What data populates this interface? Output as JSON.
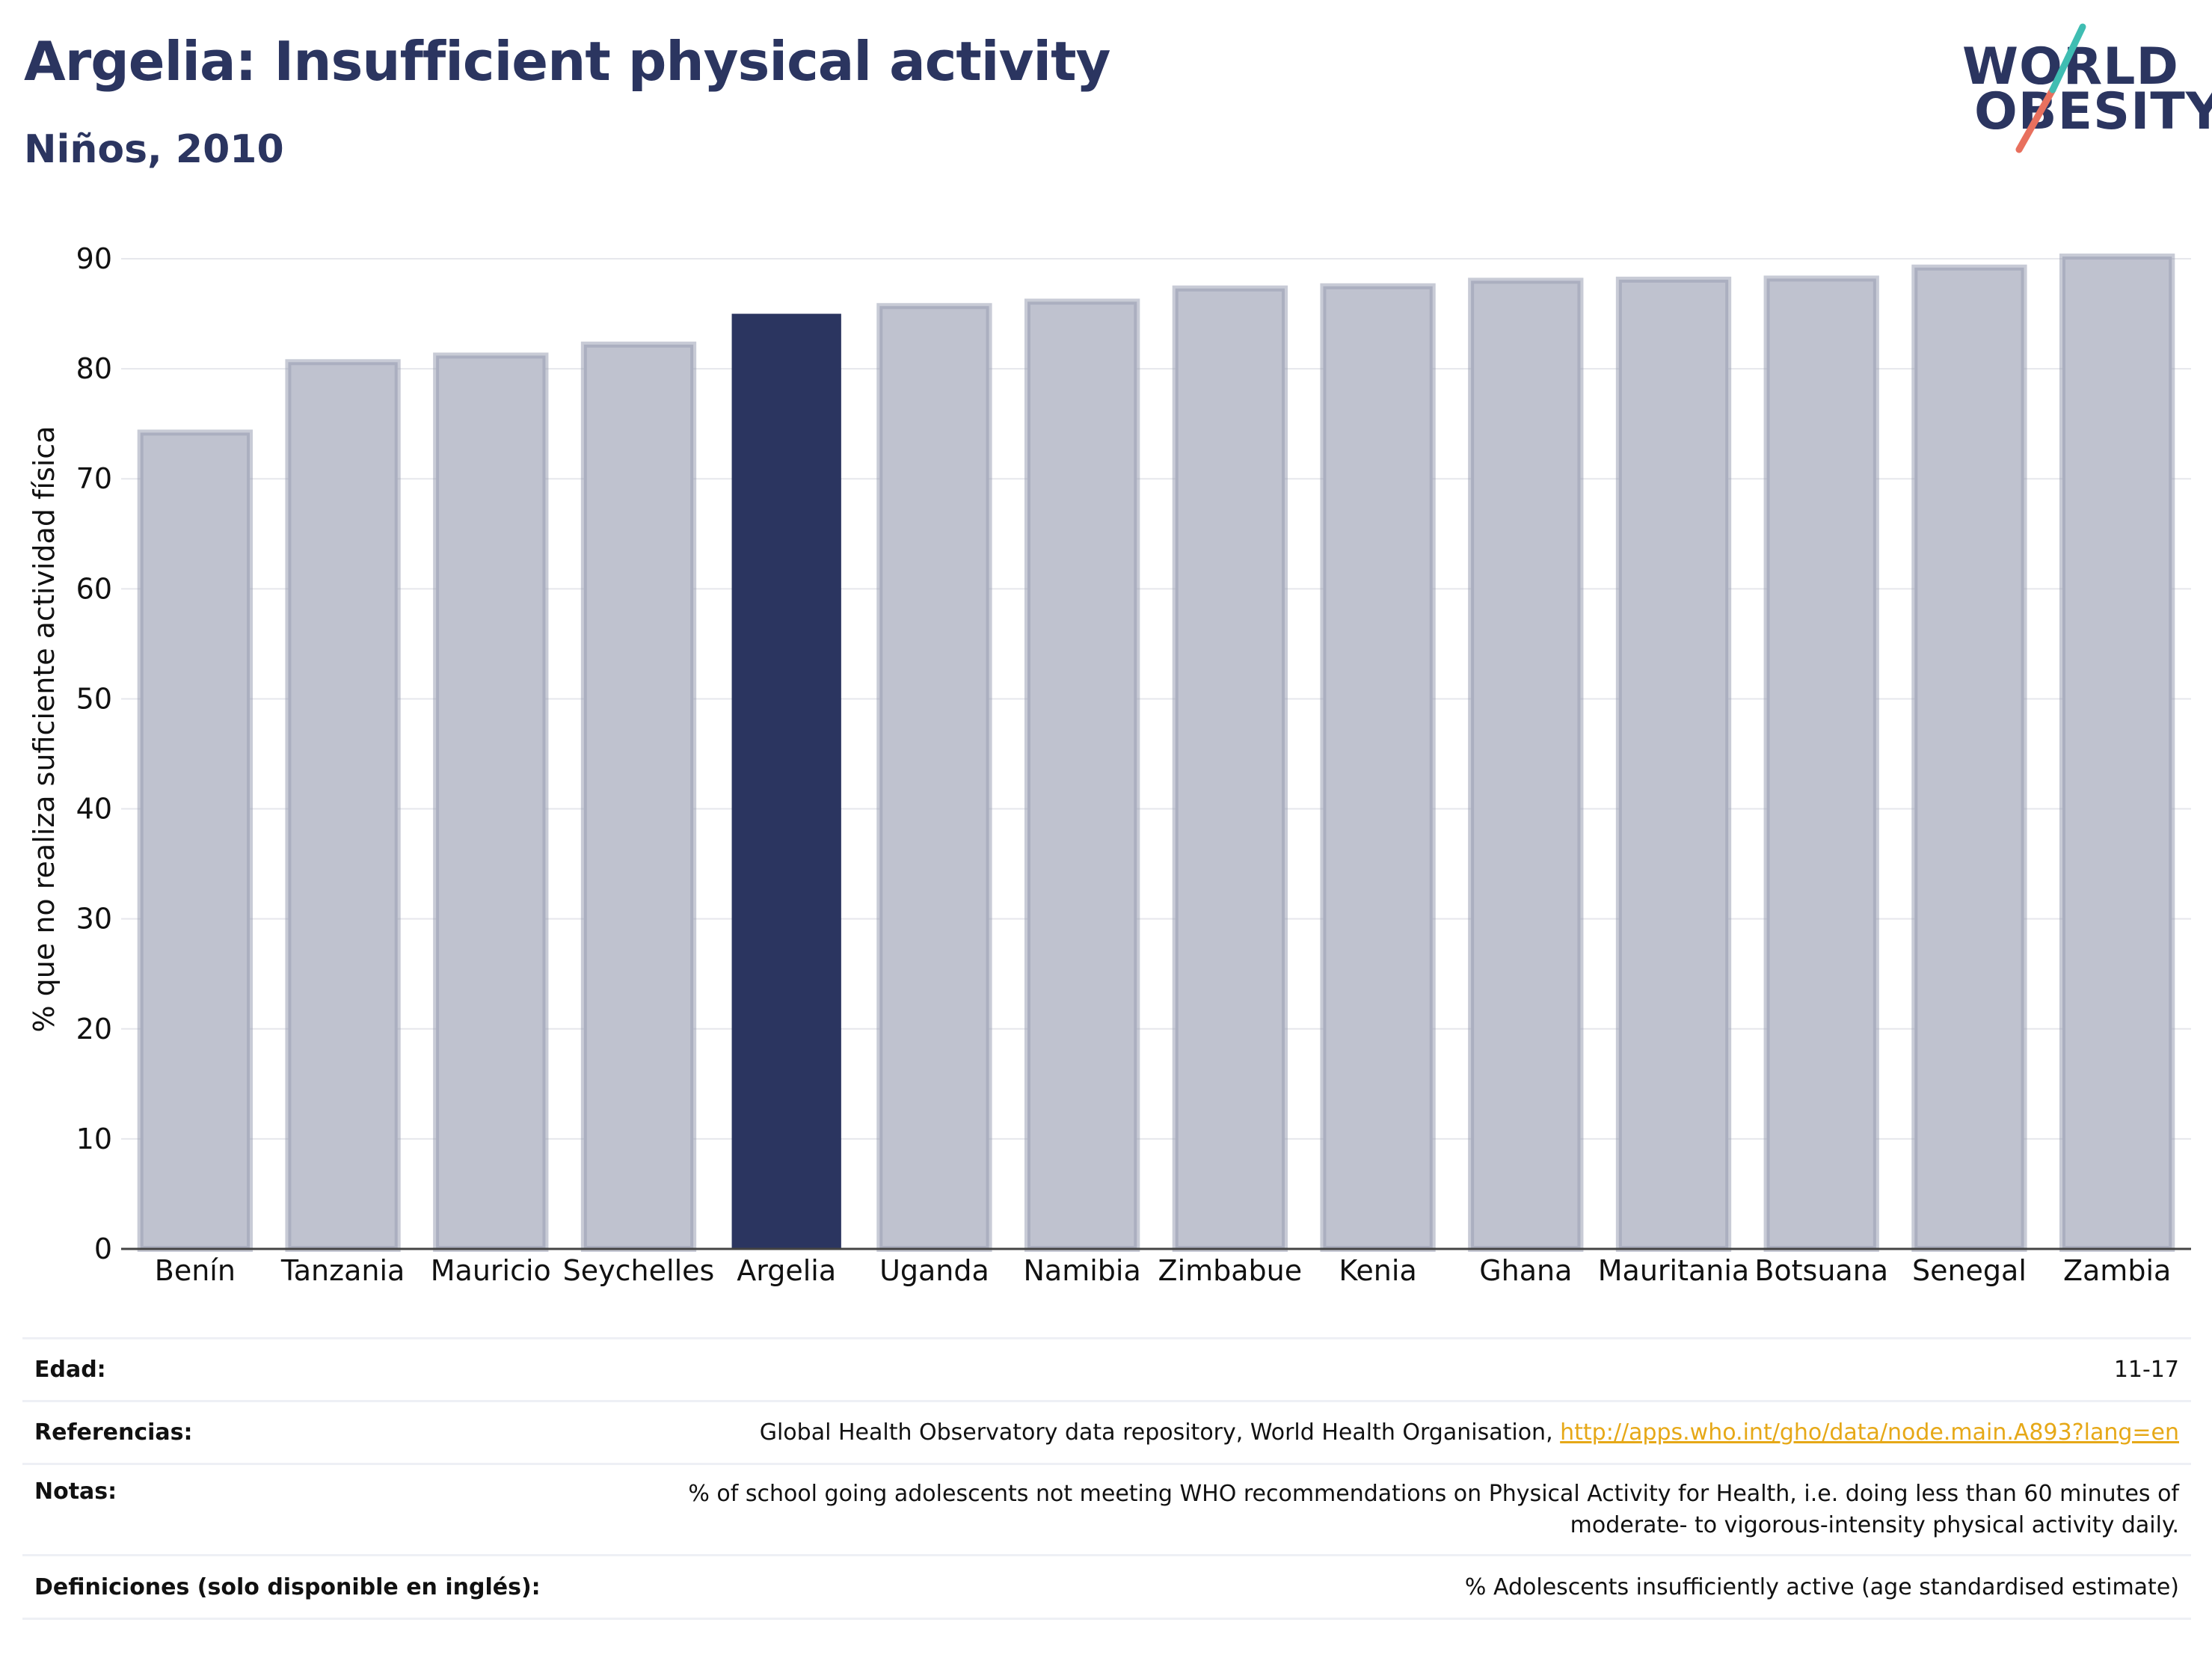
{
  "header": {
    "title": "Argelia: Insufficient physical activity",
    "subtitle": "Niños, 2010"
  },
  "logo": {
    "line1": "WORLD",
    "line2": "OBESITY"
  },
  "colors": {
    "highlight": "#2b3560",
    "bar": "#bfc2cf",
    "bar_border": "#9aa0b5",
    "text": "#2b3560",
    "link": "#e6a817"
  },
  "chart_data": {
    "type": "bar",
    "ylabel": "% que no realiza suficiente actividad física",
    "ylim": [
      0,
      90
    ],
    "yticks": [
      0,
      10,
      20,
      30,
      40,
      50,
      60,
      70,
      80,
      90
    ],
    "categories": [
      "Benín",
      "Tanzania",
      "Mauricio",
      "Seychelles",
      "Argelia",
      "Uganda",
      "Namibia",
      "Zimbabue",
      "Kenia",
      "Ghana",
      "Mauritania",
      "Botsuana",
      "Senegal",
      "Zambia"
    ],
    "values": [
      74.2,
      80.6,
      81.2,
      82.2,
      85.0,
      85.7,
      86.1,
      87.3,
      87.5,
      88.0,
      88.1,
      88.2,
      89.2,
      90.2
    ],
    "highlight": "Argelia",
    "grid": true
  },
  "footer": {
    "rows": [
      {
        "label": "Edad:",
        "value": "11-17"
      },
      {
        "label": "Referencias:",
        "value": "Global Health Observatory data repository, World Health Organisation, ",
        "link": "http://apps.who.int/gho/data/node.main.A893?lang=en"
      },
      {
        "label": "Notas:",
        "value": "% of school going adolescents not meeting WHO recommendations on Physical Activity for Health, i.e. doing less than 60 minutes of moderate- to vigorous-intensity physical activity daily."
      },
      {
        "label": "Definiciones (solo disponible en inglés):",
        "value": "% Adolescents insufficiently active (age standardised estimate)"
      }
    ]
  }
}
